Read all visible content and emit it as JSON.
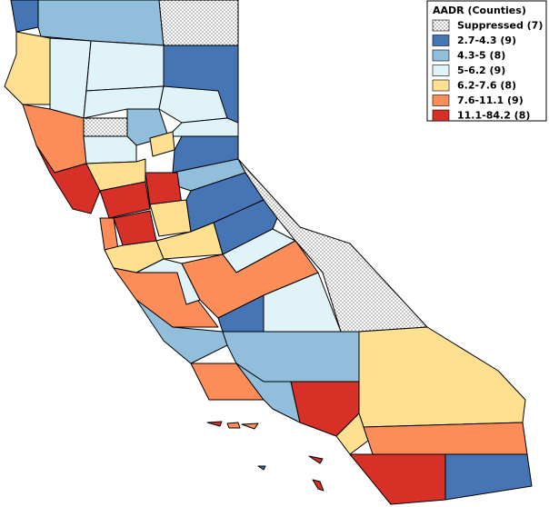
{
  "legend": {
    "title": "AADR (Counties)",
    "items": [
      {
        "label": "Suppressed (7)",
        "color": "#ffffff",
        "pattern": "dots"
      },
      {
        "label": "2.7-4.3 (9)",
        "color": "#4575b4"
      },
      {
        "label": "4.3-5 (8)",
        "color": "#91bfdb"
      },
      {
        "label": "5-6.2 (9)",
        "color": "#e0f3f8"
      },
      {
        "label": "6.2-7.6 (8)",
        "color": "#fee090"
      },
      {
        "label": "7.6-11.1 (9)",
        "color": "#fc8d59"
      },
      {
        "label": "11.1-84.2 (8)",
        "color": "#d73027"
      }
    ]
  }
}
